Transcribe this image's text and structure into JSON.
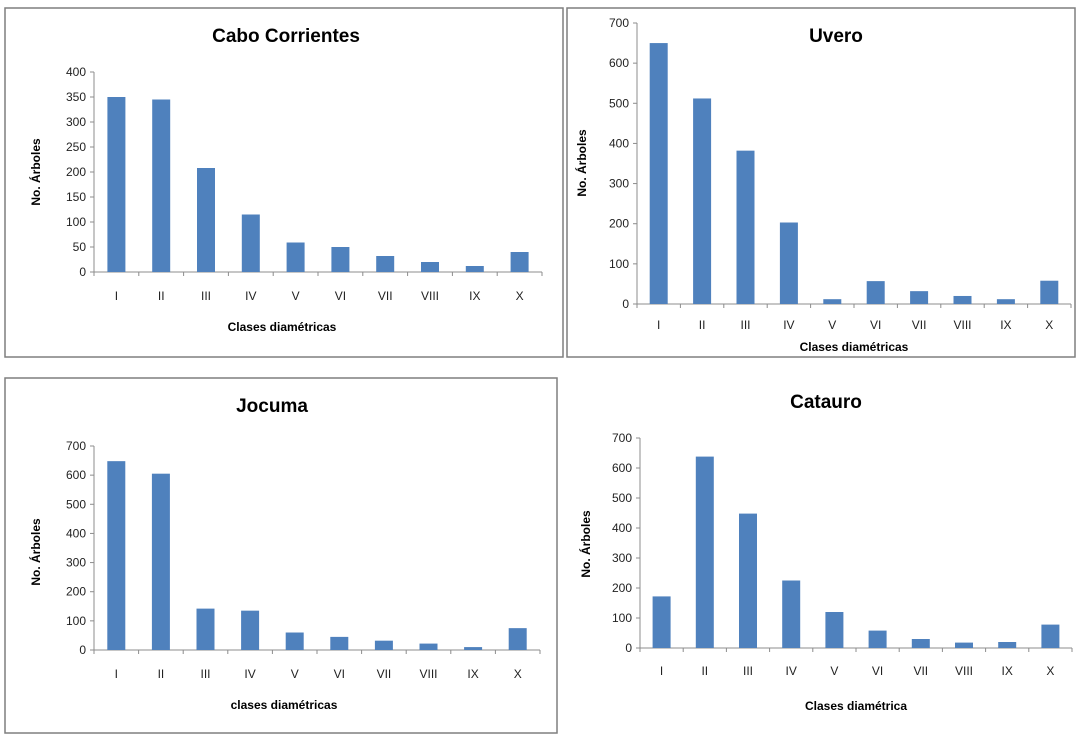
{
  "chart_data": [
    {
      "type": "bar",
      "title": "Cabo Corrientes",
      "xlabel": "Clases diamétricas",
      "ylabel": "No. Árboles",
      "categories": [
        "I",
        "II",
        "III",
        "IV",
        "V",
        "VI",
        "VII",
        "VIII",
        "IX",
        "X"
      ],
      "values": [
        350,
        345,
        208,
        115,
        59,
        50,
        32,
        20,
        12,
        40
      ],
      "ylim": [
        0,
        400
      ],
      "yticks": [
        0,
        50,
        100,
        150,
        200,
        250,
        300,
        350,
        400
      ],
      "grid": false,
      "legend": "none",
      "bar_color": "#4f81bd"
    },
    {
      "type": "bar",
      "title": "Uvero",
      "xlabel": "Clases diamétricas",
      "ylabel": "No. Árboles",
      "categories": [
        "I",
        "II",
        "III",
        "IV",
        "V",
        "VI",
        "VII",
        "VIII",
        "IX",
        "X"
      ],
      "values": [
        650,
        512,
        382,
        203,
        12,
        57,
        32,
        20,
        12,
        58
      ],
      "ylim": [
        0,
        700
      ],
      "yticks": [
        0,
        100,
        200,
        300,
        400,
        500,
        600,
        700
      ],
      "grid": false,
      "legend": "none",
      "bar_color": "#4f81bd"
    },
    {
      "type": "bar",
      "title": "Jocuma",
      "xlabel": "clases diamétricas",
      "ylabel": "No. Árboles",
      "categories": [
        "I",
        "II",
        "III",
        "IV",
        "V",
        "VI",
        "VII",
        "VIII",
        "IX",
        "X"
      ],
      "values": [
        648,
        605,
        142,
        135,
        60,
        45,
        32,
        22,
        10,
        75
      ],
      "ylim": [
        0,
        700
      ],
      "yticks": [
        0,
        100,
        200,
        300,
        400,
        500,
        600,
        700
      ],
      "grid": false,
      "legend": "none",
      "bar_color": "#4f81bd"
    },
    {
      "type": "bar",
      "title": "Catauro",
      "xlabel": "Clases diamétrica",
      "ylabel": "No. Árboles",
      "categories": [
        "I",
        "II",
        "III",
        "IV",
        "V",
        "VI",
        "VII",
        "VIII",
        "IX",
        "X"
      ],
      "values": [
        172,
        638,
        448,
        225,
        120,
        58,
        30,
        18,
        20,
        78
      ],
      "ylim": [
        0,
        700
      ],
      "yticks": [
        0,
        100,
        200,
        300,
        400,
        500,
        600,
        700
      ],
      "grid": false,
      "legend": "none",
      "bar_color": "#4f81bd"
    }
  ]
}
